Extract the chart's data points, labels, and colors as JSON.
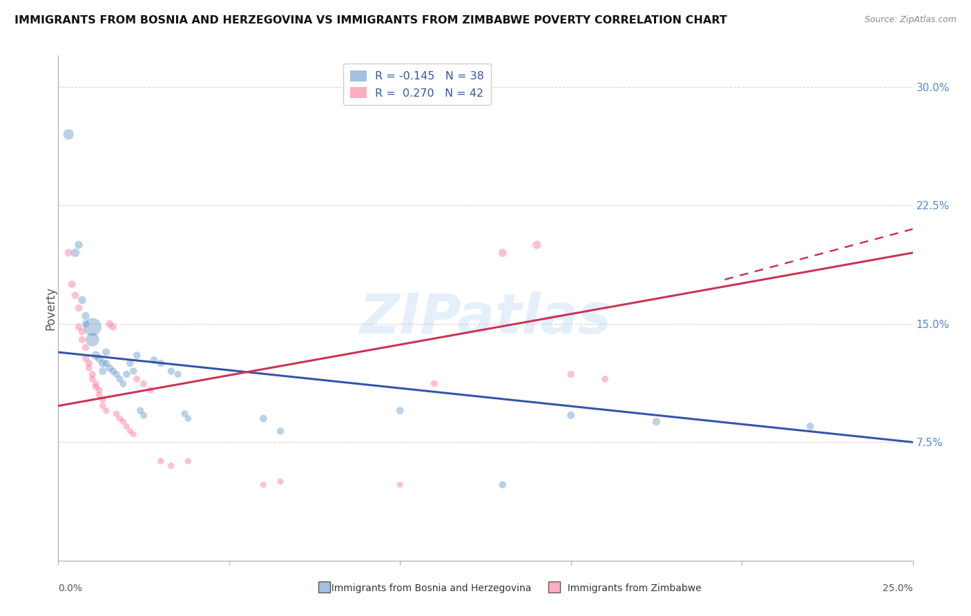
{
  "title": "IMMIGRANTS FROM BOSNIA AND HERZEGOVINA VS IMMIGRANTS FROM ZIMBABWE POVERTY CORRELATION CHART",
  "source": "Source: ZipAtlas.com",
  "ylabel": "Poverty",
  "yticks": [
    0.075,
    0.15,
    0.225,
    0.3
  ],
  "ytick_labels": [
    "7.5%",
    "15.0%",
    "22.5%",
    "30.0%"
  ],
  "xlim": [
    0.0,
    0.25
  ],
  "ylim": [
    0.0,
    0.32
  ],
  "legend_r_blue": "-0.145",
  "legend_n_blue": "38",
  "legend_r_pink": "0.270",
  "legend_n_pink": "42",
  "color_blue": "#6699CC",
  "color_pink": "#FF7799",
  "watermark": "ZIPatlas",
  "blue_line": [
    [
      0.0,
      0.132
    ],
    [
      0.25,
      0.075
    ]
  ],
  "pink_line": [
    [
      0.0,
      0.098
    ],
    [
      0.25,
      0.195
    ]
  ],
  "pink_line_dashed_ext": [
    [
      0.2,
      0.182
    ],
    [
      0.25,
      0.21
    ]
  ],
  "blue_scatter": [
    [
      0.003,
      0.27
    ],
    [
      0.005,
      0.195
    ],
    [
      0.006,
      0.2
    ],
    [
      0.007,
      0.165
    ],
    [
      0.008,
      0.155
    ],
    [
      0.008,
      0.15
    ],
    [
      0.01,
      0.148
    ],
    [
      0.01,
      0.14
    ],
    [
      0.011,
      0.13
    ],
    [
      0.012,
      0.128
    ],
    [
      0.013,
      0.125
    ],
    [
      0.013,
      0.12
    ],
    [
      0.014,
      0.132
    ],
    [
      0.014,
      0.125
    ],
    [
      0.015,
      0.122
    ],
    [
      0.016,
      0.12
    ],
    [
      0.017,
      0.118
    ],
    [
      0.018,
      0.115
    ],
    [
      0.019,
      0.112
    ],
    [
      0.02,
      0.118
    ],
    [
      0.021,
      0.125
    ],
    [
      0.022,
      0.12
    ],
    [
      0.023,
      0.13
    ],
    [
      0.024,
      0.095
    ],
    [
      0.025,
      0.092
    ],
    [
      0.028,
      0.127
    ],
    [
      0.03,
      0.125
    ],
    [
      0.033,
      0.12
    ],
    [
      0.035,
      0.118
    ],
    [
      0.037,
      0.093
    ],
    [
      0.038,
      0.09
    ],
    [
      0.06,
      0.09
    ],
    [
      0.065,
      0.082
    ],
    [
      0.1,
      0.095
    ],
    [
      0.13,
      0.048
    ],
    [
      0.15,
      0.092
    ],
    [
      0.175,
      0.088
    ],
    [
      0.22,
      0.085
    ]
  ],
  "blue_sizes": [
    120,
    80,
    70,
    70,
    65,
    60,
    350,
    200,
    80,
    75,
    70,
    65,
    65,
    60,
    60,
    58,
    55,
    55,
    52,
    55,
    58,
    55,
    60,
    55,
    52,
    60,
    58,
    55,
    52,
    52,
    48,
    60,
    55,
    60,
    55,
    65,
    65,
    60
  ],
  "pink_scatter": [
    [
      0.003,
      0.195
    ],
    [
      0.004,
      0.175
    ],
    [
      0.005,
      0.168
    ],
    [
      0.006,
      0.16
    ],
    [
      0.006,
      0.148
    ],
    [
      0.007,
      0.145
    ],
    [
      0.007,
      0.14
    ],
    [
      0.008,
      0.135
    ],
    [
      0.008,
      0.128
    ],
    [
      0.009,
      0.125
    ],
    [
      0.009,
      0.122
    ],
    [
      0.01,
      0.118
    ],
    [
      0.01,
      0.115
    ],
    [
      0.011,
      0.112
    ],
    [
      0.011,
      0.11
    ],
    [
      0.012,
      0.108
    ],
    [
      0.012,
      0.105
    ],
    [
      0.013,
      0.102
    ],
    [
      0.013,
      0.098
    ],
    [
      0.014,
      0.095
    ],
    [
      0.015,
      0.15
    ],
    [
      0.016,
      0.148
    ],
    [
      0.017,
      0.093
    ],
    [
      0.018,
      0.09
    ],
    [
      0.019,
      0.088
    ],
    [
      0.02,
      0.085
    ],
    [
      0.021,
      0.082
    ],
    [
      0.022,
      0.08
    ],
    [
      0.023,
      0.115
    ],
    [
      0.025,
      0.112
    ],
    [
      0.027,
      0.108
    ],
    [
      0.03,
      0.063
    ],
    [
      0.033,
      0.06
    ],
    [
      0.038,
      0.063
    ],
    [
      0.06,
      0.048
    ],
    [
      0.065,
      0.05
    ],
    [
      0.1,
      0.048
    ],
    [
      0.11,
      0.112
    ],
    [
      0.13,
      0.195
    ],
    [
      0.14,
      0.2
    ],
    [
      0.15,
      0.118
    ],
    [
      0.16,
      0.115
    ]
  ],
  "pink_sizes": [
    65,
    62,
    60,
    58,
    56,
    56,
    55,
    55,
    54,
    54,
    52,
    52,
    50,
    50,
    50,
    48,
    48,
    48,
    46,
    46,
    60,
    58,
    48,
    46,
    44,
    44,
    42,
    42,
    52,
    50,
    48,
    46,
    44,
    44,
    42,
    42,
    42,
    55,
    75,
    78,
    55,
    52
  ]
}
